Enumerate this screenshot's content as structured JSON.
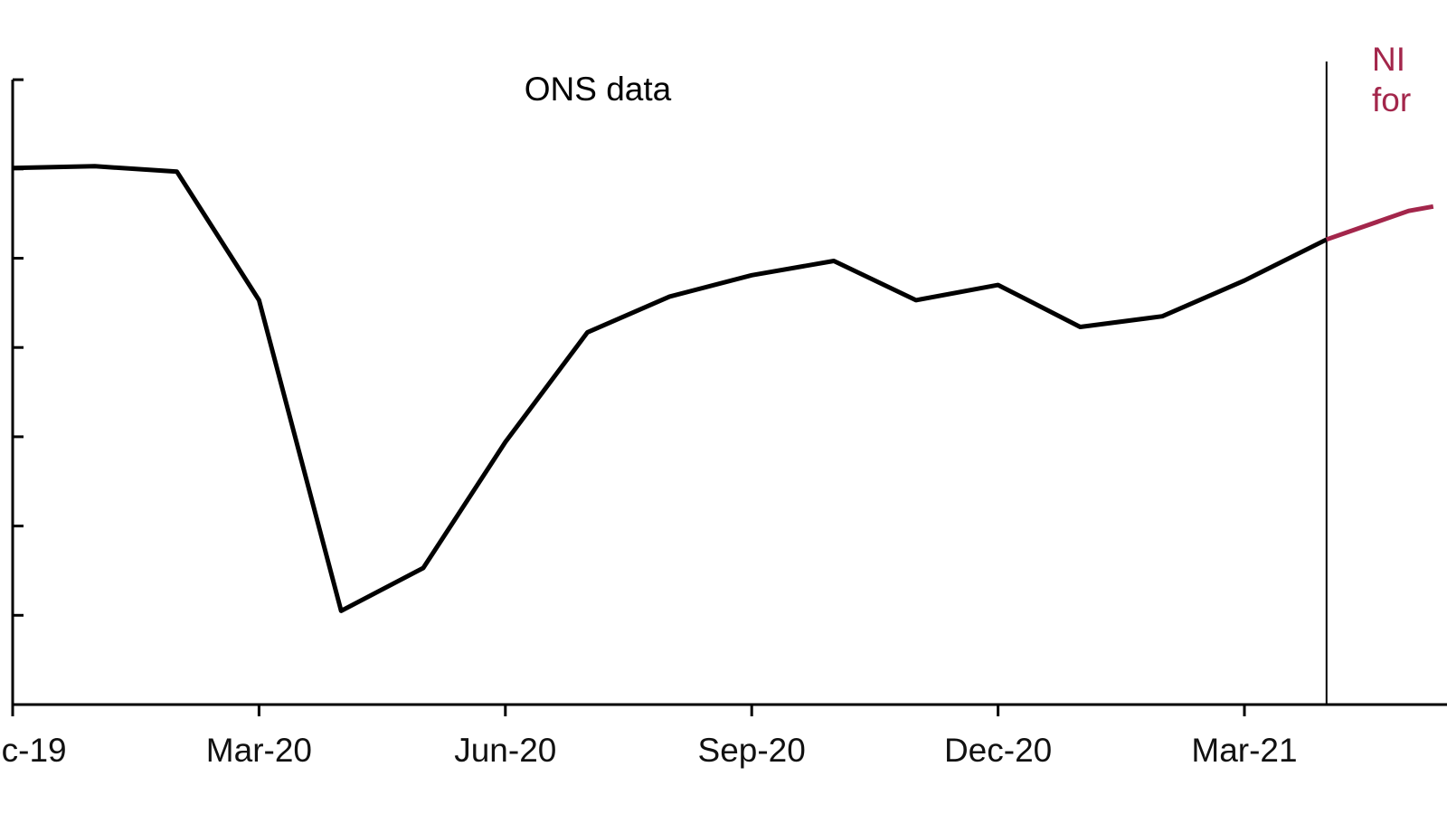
{
  "chart_data": {
    "type": "line",
    "title": "",
    "xlabel": "",
    "ylabel": "",
    "ylim": [
      0,
      7
    ],
    "x_categories": [
      "Dec-19",
      "Jan-20",
      "Feb-20",
      "Mar-20",
      "Apr-20",
      "May-20",
      "Jun-20",
      "Jul-20",
      "Aug-20",
      "Sep-20",
      "Oct-20",
      "Nov-20",
      "Dec-20",
      "Jan-21",
      "Feb-21",
      "Mar-21",
      "Apr-21",
      "May-21"
    ],
    "x_tick_labels": [
      {
        "index": 0,
        "label": "Dec-19"
      },
      {
        "index": 3,
        "label": "Mar-20"
      },
      {
        "index": 6,
        "label": "Jun-20"
      },
      {
        "index": 9,
        "label": "Sep-20"
      },
      {
        "index": 12,
        "label": "Dec-20"
      },
      {
        "index": 15,
        "label": "Mar-21"
      }
    ],
    "y_ticks": [
      1,
      2,
      3,
      4,
      5,
      6,
      7
    ],
    "divider_x": 16,
    "series": [
      {
        "name": "ONS data",
        "color": "#000000",
        "x": [
          0,
          1,
          2,
          3,
          4,
          5,
          6,
          7,
          8,
          9,
          10,
          11,
          12,
          13,
          14,
          15,
          16
        ],
        "values": [
          6.01,
          6.03,
          5.97,
          4.53,
          1.05,
          1.53,
          2.94,
          4.17,
          4.57,
          4.81,
          4.97,
          4.53,
          4.7,
          4.23,
          4.35,
          4.75,
          5.21
        ]
      },
      {
        "name": "NIESR forecast",
        "color": "#a3264b",
        "x": [
          16,
          17,
          17.3
        ],
        "values": [
          5.21,
          5.53,
          5.58
        ]
      }
    ],
    "annotations": [
      {
        "id": "ons",
        "lines": [
          "ONS data"
        ],
        "color": "#000000"
      },
      {
        "id": "forecast",
        "lines": [
          "NI",
          "for"
        ],
        "color": "#a3264b"
      }
    ]
  }
}
